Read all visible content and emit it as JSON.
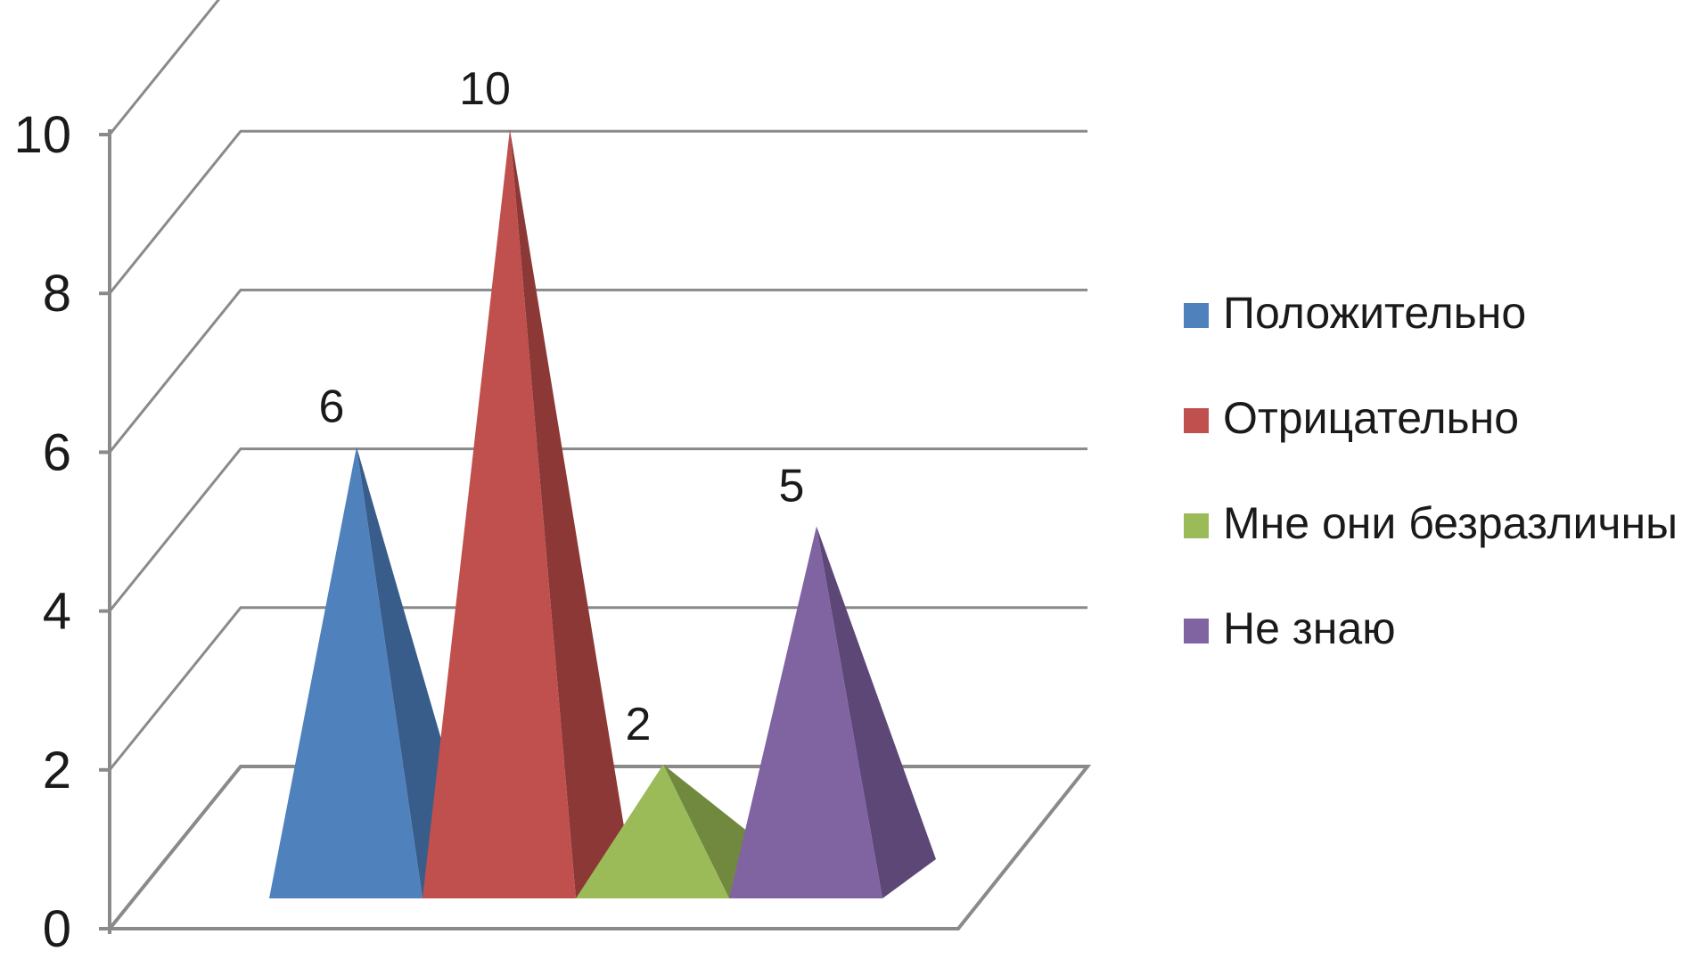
{
  "chart_data": {
    "type": "bar",
    "style": "3d-pyramid",
    "title": "",
    "xlabel": "",
    "ylabel": "",
    "ylim": [
      0,
      10
    ],
    "yticks": [
      "0",
      "2",
      "4",
      "6",
      "8",
      "10"
    ],
    "grid": true,
    "legend_position": "right",
    "categories": [
      "Положительно",
      "Отрицательно",
      "Мне они безразличны",
      "Не знаю"
    ],
    "values": [
      6,
      10,
      2,
      5
    ],
    "data_labels": [
      "6",
      "10",
      "2",
      "5"
    ],
    "colors": [
      "#4f81bd",
      "#c0504d",
      "#9bbb59",
      "#8064a2"
    ],
    "shade_colors": [
      "#385d8a",
      "#8c3836",
      "#71893f",
      "#5c4776"
    ]
  }
}
